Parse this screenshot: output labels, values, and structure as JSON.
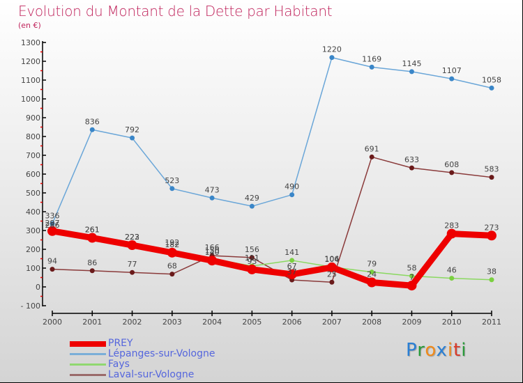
{
  "header": {
    "title": "Evolution du Montant de la Dette par Habitant",
    "subtitle": "(en €)"
  },
  "logo": {
    "letters": [
      "P",
      "r",
      "o",
      "x",
      "i",
      "t",
      "i"
    ],
    "colors": [
      "#2a7fd4",
      "#2a9a3a",
      "#f08a1a",
      "#2a7fd4",
      "#f08a1a",
      "#d93a2a",
      "#2a9a3a"
    ]
  },
  "chart_data": {
    "type": "line",
    "title": "Evolution du Montant de la Dette par Habitant",
    "subtitle": "(en €)",
    "xlabel": "",
    "ylabel": "",
    "x": [
      "2000",
      "2001",
      "2002",
      "2003",
      "2004",
      "2005",
      "2006",
      "2007",
      "2008",
      "2009",
      "2010",
      "2011"
    ],
    "ylim": [
      -100,
      1300
    ],
    "yticks": [
      -100,
      0,
      100,
      200,
      300,
      400,
      500,
      600,
      700,
      800,
      900,
      1000,
      1100,
      1200,
      1300
    ],
    "grid": false,
    "legend_position": "bottom-left",
    "series": [
      {
        "name": "Lépanges-sur-Vologne",
        "color": "#6aa6d8",
        "marker": "#3a86c8",
        "values": [
          336,
          836,
          792,
          523,
          473,
          429,
          490,
          1220,
          1169,
          1145,
          1107,
          1058
        ]
      },
      {
        "name": "Laval-sur-Vologne",
        "color": "#8a3a3a",
        "marker": "#6a1a1a",
        "values": [
          94,
          86,
          77,
          68,
          166,
          156,
          37,
          25,
          691,
          633,
          608,
          583
        ]
      },
      {
        "name": "Fays",
        "color": "#8ad860",
        "marker": "#7ad040",
        "values": [
          286,
          261,
          223,
          192,
          150,
          111,
          141,
          106,
          79,
          58,
          46,
          38
        ]
      },
      {
        "name": "PREY",
        "color": "#ee0000",
        "marker": "#ee0000",
        "values": [
          297,
          261,
          222,
          182,
          140,
          93,
          67,
          104,
          24,
          7,
          283,
          273
        ]
      }
    ],
    "legend": [
      "PREY",
      "Lépanges-sur-Vologne",
      "Fays",
      "Laval-sur-Vologne"
    ]
  },
  "legend": [
    {
      "label": "PREY",
      "color": "#ee0000"
    },
    {
      "label": "Lépanges-sur-Vologne",
      "color": "#7aaed8"
    },
    {
      "label": "Fays",
      "color": "#90d870"
    },
    {
      "label": "Laval-sur-Vologne",
      "color": "#9a6a6a"
    }
  ]
}
